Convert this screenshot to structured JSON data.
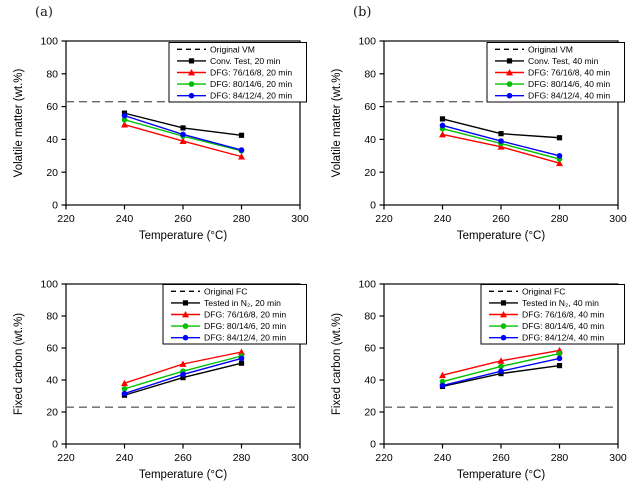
{
  "figure": {
    "description": "Four line charts comparing volatile matter and fixed carbon versus temperature for 20 min and 40 min treatments"
  },
  "panels": {
    "a": {
      "label": "(a)"
    },
    "b": {
      "label": "(b)"
    }
  },
  "colors": {
    "conventional": "#000000",
    "dfg_76_16_8": "#ff0000",
    "dfg_80_14_6": "#00c000",
    "dfg_84_12_4": "#0000ff",
    "reference_dashed": "#666666",
    "axis": "#000000"
  },
  "chart_data": [
    {
      "id": "a",
      "panel_label": "(a)",
      "type": "line",
      "x": [
        240,
        260,
        280
      ],
      "xlabel": "Temperature (°C)",
      "ylabel": "Volatile matter (wt.%)",
      "xlim": [
        220,
        300
      ],
      "ylim": [
        0,
        100
      ],
      "xticks": [
        220,
        240,
        260,
        280,
        300
      ],
      "yticks": [
        0,
        20,
        40,
        60,
        80,
        100
      ],
      "grid": false,
      "legend_position": "top-right",
      "ref_line": {
        "label": "Original VM",
        "value": 63,
        "style": "dashed",
        "color": "#666666"
      },
      "series": [
        {
          "name": "Conv. Test, 20 min",
          "color": "#000000",
          "marker": "square",
          "values": [
            56,
            47,
            42.5
          ]
        },
        {
          "name": "DFG: 76/16/8, 20 min",
          "color": "#ff0000",
          "marker": "triangle",
          "values": [
            49,
            39,
            29.5
          ]
        },
        {
          "name": "DFG: 80/14/6, 20 min",
          "color": "#00c000",
          "marker": "circle",
          "values": [
            52,
            42,
            33
          ]
        },
        {
          "name": "DFG: 84/12/4, 20 min",
          "color": "#0000ff",
          "marker": "circle",
          "values": [
            54.5,
            43,
            33.5
          ]
        }
      ]
    },
    {
      "id": "b",
      "panel_label": "(b)",
      "type": "line",
      "x": [
        240,
        260,
        280
      ],
      "xlabel": "Temperature (°C)",
      "ylabel": "Volatile matter (wt.%)",
      "xlim": [
        220,
        300
      ],
      "ylim": [
        0,
        100
      ],
      "xticks": [
        220,
        240,
        260,
        280,
        300
      ],
      "yticks": [
        0,
        20,
        40,
        60,
        80,
        100
      ],
      "grid": false,
      "legend_position": "top-right",
      "ref_line": {
        "label": "Original VM",
        "value": 63,
        "style": "dashed",
        "color": "#666666"
      },
      "series": [
        {
          "name": "Conv. Test, 40 min",
          "color": "#000000",
          "marker": "square",
          "values": [
            52.5,
            43.5,
            41
          ]
        },
        {
          "name": "DFG: 76/16/8, 40 min",
          "color": "#ff0000",
          "marker": "triangle",
          "values": [
            43,
            35.5,
            25.5
          ]
        },
        {
          "name": "DFG: 80/14/6, 40 min",
          "color": "#00c000",
          "marker": "circle",
          "values": [
            46.5,
            37.5,
            28
          ]
        },
        {
          "name": "DFG: 84/12/4, 40 min",
          "color": "#0000ff",
          "marker": "circle",
          "values": [
            48.5,
            39,
            30
          ]
        }
      ]
    },
    {
      "id": "c",
      "type": "line",
      "x": [
        240,
        260,
        280
      ],
      "xlabel": "Temperature (°C)",
      "ylabel": "Fixed carbon (wt.%)",
      "xlim": [
        220,
        300
      ],
      "ylim": [
        0,
        100
      ],
      "xticks": [
        220,
        240,
        260,
        280,
        300
      ],
      "yticks": [
        0,
        20,
        40,
        60,
        80,
        100
      ],
      "grid": false,
      "legend_position": "top-right",
      "ref_line": {
        "label": "Original FC",
        "value": 23,
        "style": "dashed",
        "color": "#666666"
      },
      "series": [
        {
          "name": "Tested in N₂, 20 min",
          "color": "#000000",
          "marker": "square",
          "values": [
            30.5,
            41.5,
            50.5
          ]
        },
        {
          "name": "DFG: 76/16/8, 20 min",
          "color": "#ff0000",
          "marker": "triangle",
          "values": [
            38,
            50,
            57.5
          ]
        },
        {
          "name": "DFG: 80/14/6, 20 min",
          "color": "#00c000",
          "marker": "circle",
          "values": [
            34.5,
            45.5,
            55
          ]
        },
        {
          "name": "DFG: 84/12/4, 20 min",
          "color": "#0000ff",
          "marker": "circle",
          "values": [
            31.5,
            43.5,
            53.5
          ]
        }
      ]
    },
    {
      "id": "d",
      "type": "line",
      "x": [
        240,
        260,
        280
      ],
      "xlabel": "Temperature (°C)",
      "ylabel": "Fixed carbon (wt.%)",
      "xlim": [
        220,
        300
      ],
      "ylim": [
        0,
        100
      ],
      "xticks": [
        220,
        240,
        260,
        280,
        300
      ],
      "yticks": [
        0,
        20,
        40,
        60,
        80,
        100
      ],
      "grid": false,
      "legend_position": "top-right",
      "ref_line": {
        "label": "Original FC",
        "value": 23,
        "style": "dashed",
        "color": "#666666"
      },
      "series": [
        {
          "name": "Tested in N₂, 40 min",
          "color": "#000000",
          "marker": "square",
          "values": [
            36,
            44,
            49
          ]
        },
        {
          "name": "DFG: 76/16/8, 40 min",
          "color": "#ff0000",
          "marker": "triangle",
          "values": [
            43,
            52,
            58.5
          ]
        },
        {
          "name": "DFG: 80/14/6, 40 min",
          "color": "#00c000",
          "marker": "circle",
          "values": [
            39,
            48.5,
            56.5
          ]
        },
        {
          "name": "DFG: 84/12/4, 40 min",
          "color": "#0000ff",
          "marker": "circle",
          "values": [
            36.5,
            45.5,
            53.5
          ]
        }
      ]
    }
  ]
}
